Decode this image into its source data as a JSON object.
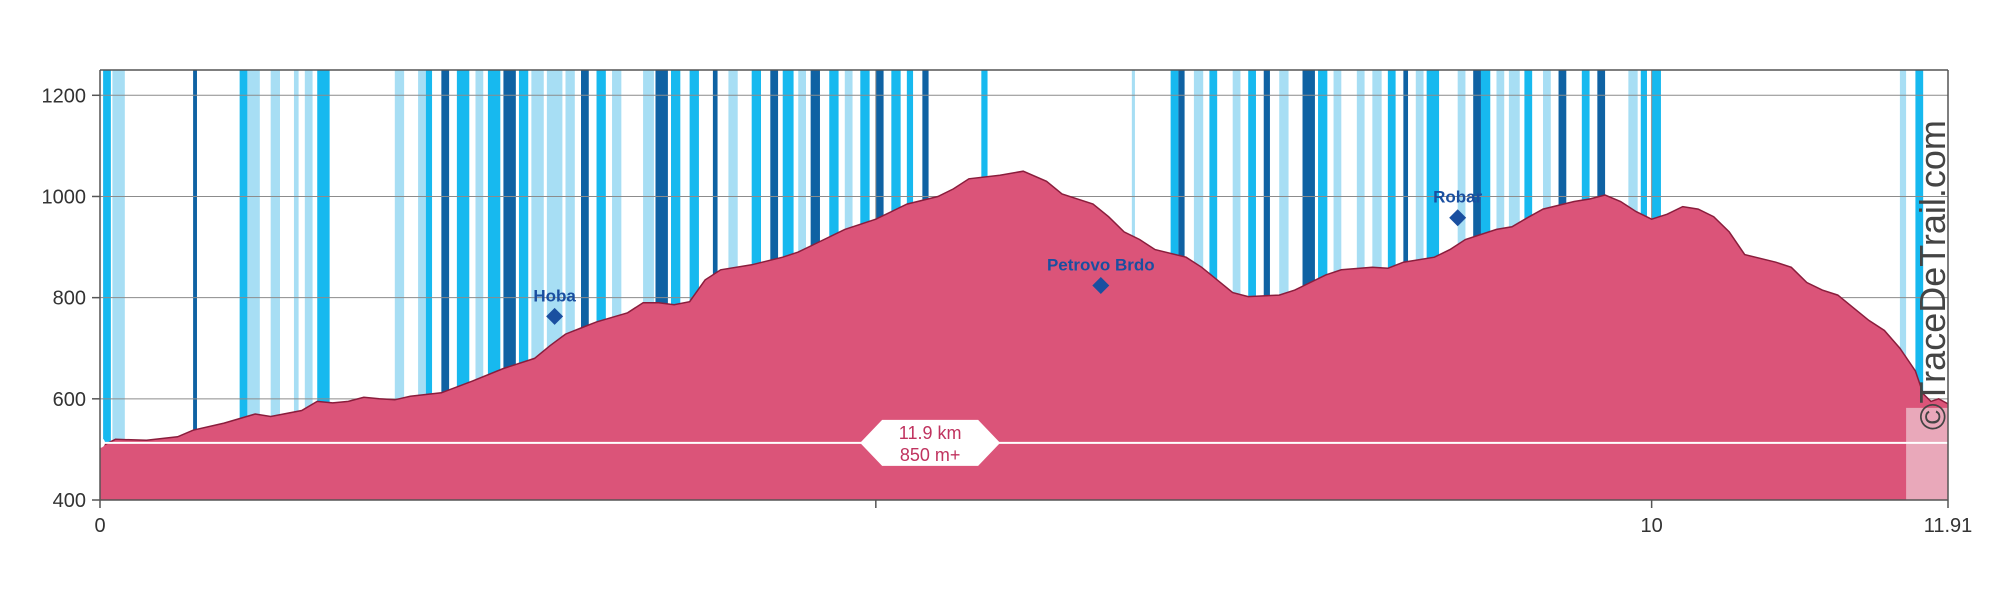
{
  "chart_data": {
    "type": "area",
    "xlim": [
      0,
      11.91
    ],
    "ylim": [
      400,
      1250
    ],
    "y_ticks": [
      400,
      600,
      800,
      1000,
      1200
    ],
    "x_ticks": [
      {
        "value": 0,
        "label": "0"
      },
      {
        "value": 5,
        "label": ""
      },
      {
        "value": 10,
        "label": "10"
      },
      {
        "value": 11.91,
        "label": "11.91"
      }
    ],
    "grid": true,
    "profile": [
      [
        0,
        505
      ],
      [
        0.1,
        520
      ],
      [
        0.3,
        518
      ],
      [
        0.5,
        525
      ],
      [
        0.6,
        538
      ],
      [
        0.8,
        552
      ],
      [
        1.0,
        570
      ],
      [
        1.1,
        565
      ],
      [
        1.3,
        577
      ],
      [
        1.4,
        595
      ],
      [
        1.5,
        592
      ],
      [
        1.6,
        595
      ],
      [
        1.7,
        603
      ],
      [
        1.8,
        600
      ],
      [
        1.9,
        598
      ],
      [
        2.0,
        605
      ],
      [
        2.2,
        612
      ],
      [
        2.4,
        635
      ],
      [
        2.6,
        660
      ],
      [
        2.8,
        680
      ],
      [
        2.9,
        705
      ],
      [
        3.0,
        728
      ],
      [
        3.1,
        740
      ],
      [
        3.2,
        752
      ],
      [
        3.4,
        770
      ],
      [
        3.5,
        790
      ],
      [
        3.6,
        790
      ],
      [
        3.7,
        786
      ],
      [
        3.8,
        792
      ],
      [
        3.9,
        835
      ],
      [
        4.0,
        855
      ],
      [
        4.2,
        865
      ],
      [
        4.4,
        880
      ],
      [
        4.5,
        890
      ],
      [
        4.6,
        905
      ],
      [
        4.8,
        935
      ],
      [
        5.0,
        955
      ],
      [
        5.2,
        985
      ],
      [
        5.4,
        1000
      ],
      [
        5.5,
        1015
      ],
      [
        5.6,
        1035
      ],
      [
        5.8,
        1042
      ],
      [
        5.95,
        1050
      ],
      [
        6.1,
        1030
      ],
      [
        6.2,
        1005
      ],
      [
        6.4,
        985
      ],
      [
        6.5,
        960
      ],
      [
        6.6,
        930
      ],
      [
        6.7,
        915
      ],
      [
        6.8,
        895
      ],
      [
        7.0,
        880
      ],
      [
        7.1,
        860
      ],
      [
        7.2,
        835
      ],
      [
        7.3,
        810
      ],
      [
        7.4,
        802
      ],
      [
        7.6,
        805
      ],
      [
        7.7,
        815
      ],
      [
        7.8,
        830
      ],
      [
        7.9,
        845
      ],
      [
        8.0,
        855
      ],
      [
        8.2,
        860
      ],
      [
        8.3,
        858
      ],
      [
        8.4,
        870
      ],
      [
        8.6,
        880
      ],
      [
        8.7,
        895
      ],
      [
        8.8,
        915
      ],
      [
        9.0,
        935
      ],
      [
        9.1,
        940
      ],
      [
        9.2,
        958
      ],
      [
        9.3,
        975
      ],
      [
        9.5,
        990
      ],
      [
        9.6,
        995
      ],
      [
        9.7,
        1003
      ],
      [
        9.8,
        990
      ],
      [
        9.9,
        970
      ],
      [
        10.0,
        955
      ],
      [
        10.1,
        965
      ],
      [
        10.2,
        980
      ],
      [
        10.3,
        975
      ],
      [
        10.4,
        960
      ],
      [
        10.5,
        930
      ],
      [
        10.6,
        885
      ],
      [
        10.8,
        870
      ],
      [
        10.9,
        860
      ],
      [
        11.0,
        830
      ],
      [
        11.1,
        815
      ],
      [
        11.2,
        805
      ],
      [
        11.3,
        780
      ],
      [
        11.4,
        755
      ],
      [
        11.5,
        735
      ],
      [
        11.6,
        700
      ],
      [
        11.7,
        655
      ],
      [
        11.75,
        610
      ],
      [
        11.8,
        595
      ],
      [
        11.85,
        600
      ],
      [
        11.91,
        590
      ]
    ],
    "shaded_end_km": 11.91,
    "baseline_elevation": 513,
    "peaks": [
      {
        "name": "Hoba",
        "km": 2.93,
        "ele": 763
      },
      {
        "name": "Petrovo Brdo",
        "km": 6.45,
        "ele": 824
      },
      {
        "name": "Robar",
        "km": 8.75,
        "ele": 958
      }
    ],
    "summary": {
      "distance": "11.9 km",
      "gain": "850 m+"
    },
    "stripes": [
      {
        "x": 0.02,
        "w": 0.05,
        "t": "c"
      },
      {
        "x": 0.08,
        "w": 0.08,
        "t": "l"
      },
      {
        "x": 0.6,
        "w": 0.025,
        "t": "d"
      },
      {
        "x": 0.9,
        "w": 0.05,
        "t": "c"
      },
      {
        "x": 0.95,
        "w": 0.08,
        "t": "l"
      },
      {
        "x": 1.1,
        "w": 0.06,
        "t": "l"
      },
      {
        "x": 1.25,
        "w": 0.03,
        "t": "l"
      },
      {
        "x": 1.32,
        "w": 0.05,
        "t": "l"
      },
      {
        "x": 1.4,
        "w": 0.08,
        "t": "c"
      },
      {
        "x": 1.9,
        "w": 0.06,
        "t": "l"
      },
      {
        "x": 2.05,
        "w": 0.05,
        "t": "l"
      },
      {
        "x": 2.1,
        "w": 0.04,
        "t": "c"
      },
      {
        "x": 2.2,
        "w": 0.05,
        "t": "d"
      },
      {
        "x": 2.3,
        "w": 0.08,
        "t": "c"
      },
      {
        "x": 2.42,
        "w": 0.05,
        "t": "l"
      },
      {
        "x": 2.5,
        "w": 0.08,
        "t": "c"
      },
      {
        "x": 2.6,
        "w": 0.08,
        "t": "d"
      },
      {
        "x": 2.7,
        "w": 0.06,
        "t": "c"
      },
      {
        "x": 2.78,
        "w": 0.08,
        "t": "l"
      },
      {
        "x": 2.88,
        "w": 0.1,
        "t": "l"
      },
      {
        "x": 3.0,
        "w": 0.06,
        "t": "l"
      },
      {
        "x": 3.1,
        "w": 0.05,
        "t": "d"
      },
      {
        "x": 3.2,
        "w": 0.06,
        "t": "c"
      },
      {
        "x": 3.3,
        "w": 0.06,
        "t": "l"
      },
      {
        "x": 3.5,
        "w": 0.07,
        "t": "l"
      },
      {
        "x": 3.58,
        "w": 0.08,
        "t": "d"
      },
      {
        "x": 3.68,
        "w": 0.06,
        "t": "c"
      },
      {
        "x": 3.8,
        "w": 0.06,
        "t": "c"
      },
      {
        "x": 3.95,
        "w": 0.03,
        "t": "d"
      },
      {
        "x": 4.05,
        "w": 0.06,
        "t": "l"
      },
      {
        "x": 4.2,
        "w": 0.06,
        "t": "c"
      },
      {
        "x": 4.32,
        "w": 0.05,
        "t": "d"
      },
      {
        "x": 4.4,
        "w": 0.07,
        "t": "c"
      },
      {
        "x": 4.5,
        "w": 0.05,
        "t": "l"
      },
      {
        "x": 4.58,
        "w": 0.06,
        "t": "d"
      },
      {
        "x": 4.7,
        "w": 0.06,
        "t": "c"
      },
      {
        "x": 4.8,
        "w": 0.05,
        "t": "l"
      },
      {
        "x": 4.9,
        "w": 0.06,
        "t": "c"
      },
      {
        "x": 5.0,
        "w": 0.05,
        "t": "d"
      },
      {
        "x": 5.1,
        "w": 0.06,
        "t": "c"
      },
      {
        "x": 5.2,
        "w": 0.04,
        "t": "c"
      },
      {
        "x": 5.3,
        "w": 0.04,
        "t": "d"
      },
      {
        "x": 5.68,
        "w": 0.04,
        "t": "c"
      },
      {
        "x": 6.65,
        "w": 0.02,
        "t": "l"
      },
      {
        "x": 6.9,
        "w": 0.05,
        "t": "c"
      },
      {
        "x": 6.95,
        "w": 0.04,
        "t": "d"
      },
      {
        "x": 7.05,
        "w": 0.06,
        "t": "l"
      },
      {
        "x": 7.15,
        "w": 0.05,
        "t": "c"
      },
      {
        "x": 7.3,
        "w": 0.05,
        "t": "l"
      },
      {
        "x": 7.4,
        "w": 0.05,
        "t": "c"
      },
      {
        "x": 7.5,
        "w": 0.04,
        "t": "d"
      },
      {
        "x": 7.6,
        "w": 0.06,
        "t": "l"
      },
      {
        "x": 7.75,
        "w": 0.08,
        "t": "d"
      },
      {
        "x": 7.85,
        "w": 0.06,
        "t": "c"
      },
      {
        "x": 7.95,
        "w": 0.05,
        "t": "l"
      },
      {
        "x": 8.1,
        "w": 0.05,
        "t": "l"
      },
      {
        "x": 8.2,
        "w": 0.06,
        "t": "l"
      },
      {
        "x": 8.3,
        "w": 0.05,
        "t": "c"
      },
      {
        "x": 8.4,
        "w": 0.03,
        "t": "d"
      },
      {
        "x": 8.48,
        "w": 0.05,
        "t": "l"
      },
      {
        "x": 8.55,
        "w": 0.08,
        "t": "c"
      },
      {
        "x": 8.75,
        "w": 0.05,
        "t": "l"
      },
      {
        "x": 8.85,
        "w": 0.05,
        "t": "d"
      },
      {
        "x": 8.9,
        "w": 0.06,
        "t": "c"
      },
      {
        "x": 9.0,
        "w": 0.05,
        "t": "l"
      },
      {
        "x": 9.08,
        "w": 0.07,
        "t": "l"
      },
      {
        "x": 9.18,
        "w": 0.05,
        "t": "c"
      },
      {
        "x": 9.3,
        "w": 0.05,
        "t": "l"
      },
      {
        "x": 9.4,
        "w": 0.05,
        "t": "d"
      },
      {
        "x": 9.55,
        "w": 0.05,
        "t": "c"
      },
      {
        "x": 9.65,
        "w": 0.05,
        "t": "d"
      },
      {
        "x": 9.85,
        "w": 0.06,
        "t": "l"
      },
      {
        "x": 9.93,
        "w": 0.04,
        "t": "c"
      },
      {
        "x": 10.0,
        "w": 0.06,
        "t": "c"
      },
      {
        "x": 11.6,
        "w": 0.04,
        "t": "l"
      },
      {
        "x": 11.7,
        "w": 0.05,
        "t": "c"
      }
    ]
  },
  "watermark": "©TraceDeTrail.com",
  "colors": {
    "fill": "#db5479",
    "stroke": "#8a1d3c",
    "shade": "#e9a8ba",
    "stripe_light": "#a7def4",
    "stripe_cyan": "#17b9ef",
    "stripe_dark": "#0f62a3",
    "marker": "#1a4fa0",
    "grid": "#8c8c8c",
    "summary_text": "#c0335f"
  }
}
